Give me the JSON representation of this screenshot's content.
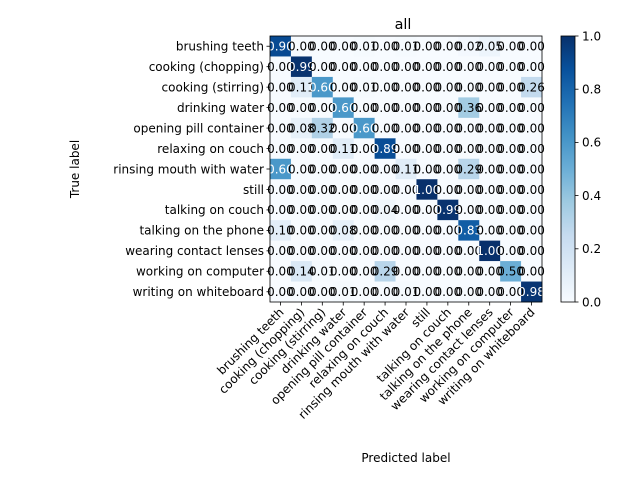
{
  "chart_data": {
    "type": "heatmap",
    "title": "all",
    "xlabel": "Predicted label",
    "ylabel": "True label",
    "labels": [
      "brushing teeth",
      "cooking (chopping)",
      "cooking (stirring)",
      "drinking water",
      "opening pill container",
      "relaxing on couch",
      "rinsing mouth with water",
      "still",
      "talking on couch",
      "talking on the phone",
      "wearing contact lenses",
      "working on computer",
      "writing on whiteboard"
    ],
    "matrix": [
      [
        0.9,
        0.0,
        0.0,
        0.0,
        0.01,
        0.0,
        0.01,
        0.0,
        0.0,
        0.02,
        0.05,
        0.0,
        0.0
      ],
      [
        0.0,
        0.99,
        0.0,
        0.0,
        0.0,
        0.0,
        0.0,
        0.0,
        0.0,
        0.0,
        0.0,
        0.0,
        0.0
      ],
      [
        0.0,
        0.11,
        0.6,
        0.0,
        0.01,
        0.0,
        0.0,
        0.0,
        0.0,
        0.0,
        0.0,
        0.0,
        0.26
      ],
      [
        0.0,
        0.0,
        0.0,
        0.6,
        0.0,
        0.0,
        0.0,
        0.0,
        0.0,
        0.36,
        0.0,
        0.0,
        0.0
      ],
      [
        0.0,
        0.08,
        0.32,
        0.0,
        0.6,
        0.0,
        0.0,
        0.0,
        0.0,
        0.0,
        0.0,
        0.0,
        0.0
      ],
      [
        0.0,
        0.0,
        0.0,
        0.11,
        0.0,
        0.89,
        0.0,
        0.0,
        0.0,
        0.0,
        0.0,
        0.0,
        0.0
      ],
      [
        0.6,
        0.0,
        0.0,
        0.0,
        0.0,
        0.0,
        0.11,
        0.0,
        0.0,
        0.29,
        0.0,
        0.0,
        0.0
      ],
      [
        0.0,
        0.0,
        0.0,
        0.0,
        0.0,
        0.0,
        0.0,
        1.0,
        0.0,
        0.0,
        0.0,
        0.0,
        0.0
      ],
      [
        0.0,
        0.0,
        0.0,
        0.0,
        0.0,
        0.04,
        0.0,
        0.0,
        0.99,
        0.0,
        0.0,
        0.0,
        0.0
      ],
      [
        0.1,
        0.0,
        0.0,
        0.08,
        0.0,
        0.0,
        0.0,
        0.0,
        0.0,
        0.83,
        0.0,
        0.0,
        0.0
      ],
      [
        0.0,
        0.0,
        0.0,
        0.0,
        0.0,
        0.0,
        0.0,
        0.0,
        0.0,
        0.0,
        1.0,
        0.0,
        0.0
      ],
      [
        0.0,
        0.14,
        0.01,
        0.0,
        0.0,
        0.29,
        0.0,
        0.0,
        0.0,
        0.0,
        0.0,
        0.5,
        0.0
      ],
      [
        0.0,
        0.0,
        0.0,
        0.01,
        0.0,
        0.0,
        0.01,
        0.0,
        0.0,
        0.0,
        0.0,
        0.0,
        0.98
      ]
    ],
    "value_format": "0.00",
    "colormap": "Blues",
    "colorbar": {
      "min": 0.0,
      "max": 1.0,
      "ticks": [
        "0.0",
        "0.2",
        "0.4",
        "0.6",
        "0.8",
        "1.0"
      ]
    },
    "text_color_dark_cells": "#ffffff",
    "text_color_light_cells": "#000000"
  }
}
